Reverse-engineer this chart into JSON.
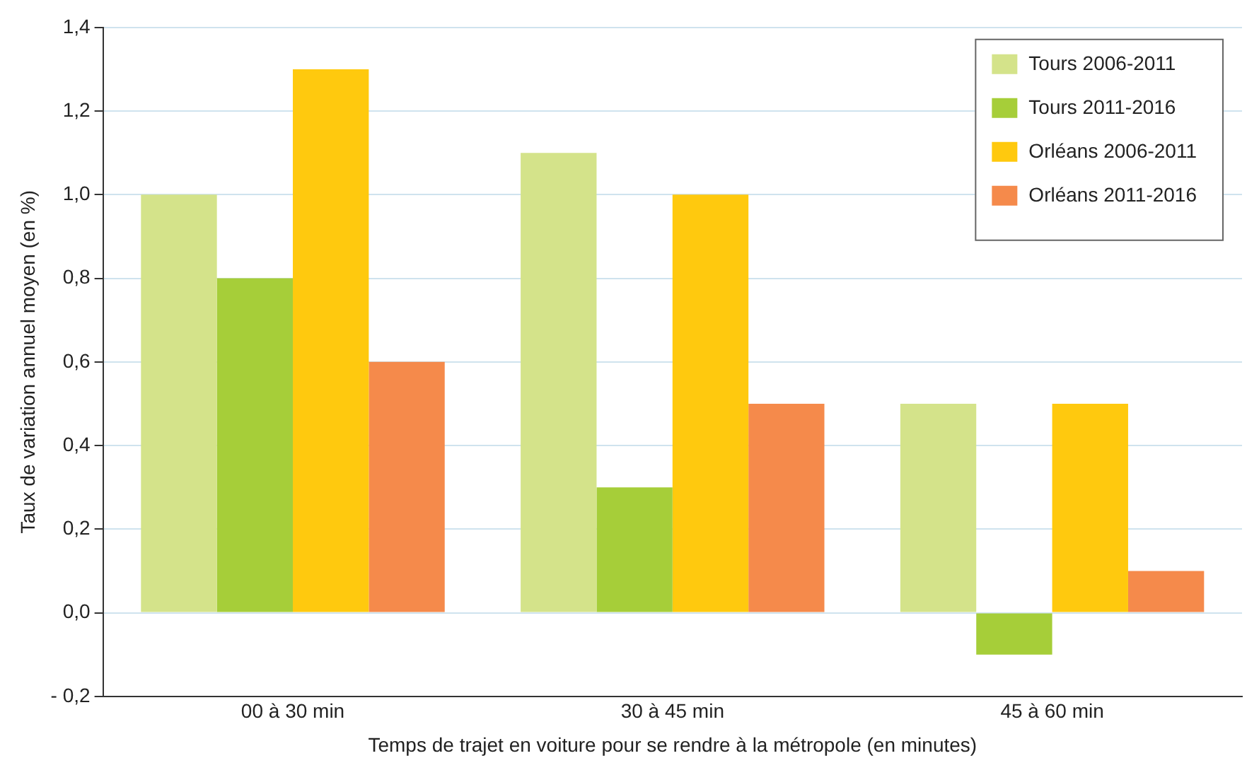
{
  "chart_data": {
    "type": "bar",
    "xlabel": "Temps de trajet en voiture pour se rendre à la métropole (en minutes)",
    "ylabel": "Taux de variation annuel moyen (en %)",
    "categories": [
      "00 à 30 min",
      "30 à 45 min",
      "45 à 60 min"
    ],
    "series": [
      {
        "name": "Tours 2006-2011",
        "color": "#d4e38a",
        "values": [
          1.0,
          1.1,
          0.5
        ]
      },
      {
        "name": "Tours 2011-2016",
        "color": "#a6ce39",
        "values": [
          0.8,
          0.3,
          -0.1
        ]
      },
      {
        "name": "Orléans 2006-2011",
        "color": "#ffc90e",
        "values": [
          1.3,
          1.0,
          0.5
        ]
      },
      {
        "name": "Orléans 2011-2016",
        "color": "#f58a4b",
        "values": [
          0.6,
          0.5,
          0.1
        ]
      }
    ],
    "ylim": [
      -0.2,
      1.4
    ],
    "yticks": [
      {
        "value": -0.2,
        "label": "- 0,2"
      },
      {
        "value": 0,
        "label": "0,0"
      },
      {
        "value": 0.2,
        "label": "0,2"
      },
      {
        "value": 0.4,
        "label": "0,4"
      },
      {
        "value": 0.6,
        "label": "0,6"
      },
      {
        "value": 0.8,
        "label": "0,8"
      },
      {
        "value": 1.0,
        "label": "1,0"
      },
      {
        "value": 1.2,
        "label": "1,2"
      },
      {
        "value": 1.4,
        "label": "1,4"
      }
    ],
    "grid": "y",
    "legend": "top right"
  }
}
